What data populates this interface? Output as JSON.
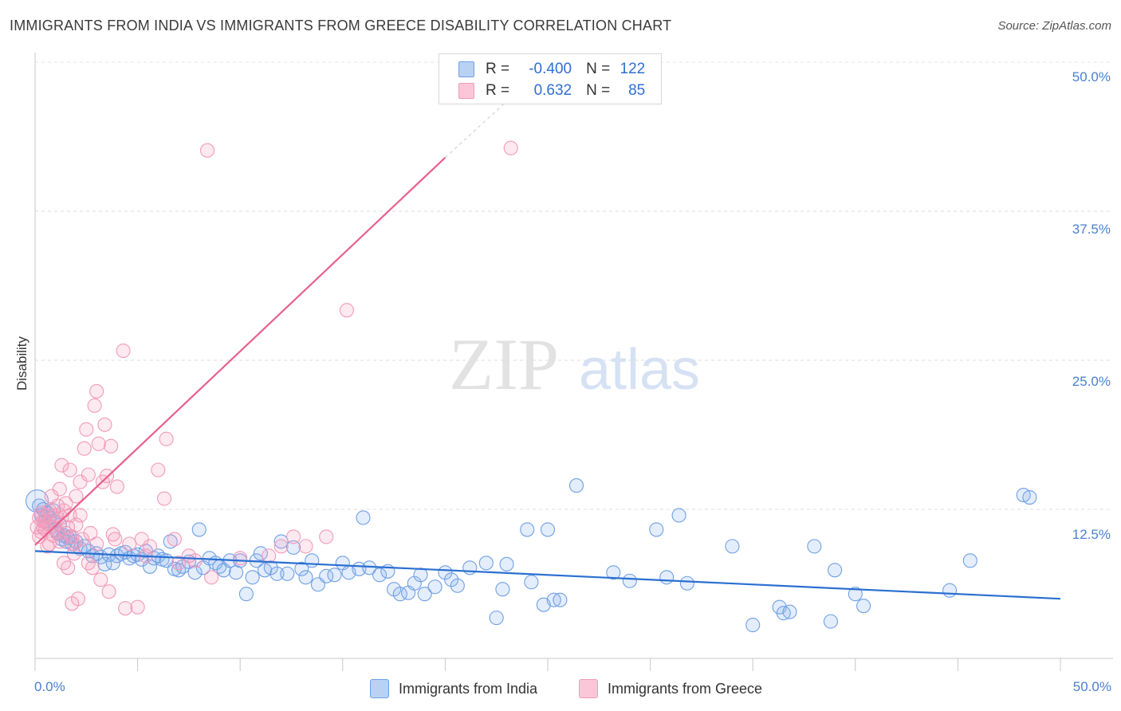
{
  "title": "IMMIGRANTS FROM INDIA VS IMMIGRANTS FROM GREECE DISABILITY CORRELATION CHART",
  "source": "Source: ZipAtlas.com",
  "watermark": {
    "zip": "ZIP",
    "atlas": "atlas"
  },
  "legend": {
    "india": {
      "r_label": "R =",
      "r_value": "-0.400",
      "n_label": "N =",
      "n_value": "122"
    },
    "greece": {
      "r_label": "R =",
      "r_value": "0.632",
      "n_label": "N =",
      "n_value": "85"
    }
  },
  "colors": {
    "india": "#6fa0e6",
    "india_line": "#2a6fd0",
    "greece": "#f29ab8",
    "greece_line": "#e8608e",
    "tick_text": "#4a7fcf"
  },
  "chart_data": {
    "type": "scatter",
    "title": "IMMIGRANTS FROM INDIA VS IMMIGRANTS FROM GREECE DISABILITY CORRELATION CHART",
    "xlabel": "",
    "ylabel": "Disability",
    "xlim": [
      0,
      50
    ],
    "ylim": [
      0,
      50
    ],
    "x_tick_labels": [
      "0.0%",
      "50.0%"
    ],
    "y_ticks": [
      12.5,
      25.0,
      37.5,
      50.0
    ],
    "y_tick_labels": [
      "12.5%",
      "25.0%",
      "37.5%",
      "50.0%"
    ],
    "grid": "horizontal dashed",
    "legend_position": "top-center",
    "series": [
      {
        "name": "Immigrants from India",
        "color": "#6fa0e6",
        "trend": {
          "x": [
            0,
            50
          ],
          "y": [
            9.0,
            5.0
          ]
        },
        "points": [
          [
            0.1,
            13.2
          ],
          [
            0.2,
            12.8
          ],
          [
            0.3,
            12.0
          ],
          [
            0.5,
            11.5
          ],
          [
            0.6,
            12.2
          ],
          [
            0.7,
            11.8
          ],
          [
            0.8,
            11.0
          ],
          [
            0.9,
            11.5
          ],
          [
            1.0,
            10.8
          ],
          [
            1.1,
            10.5
          ],
          [
            1.2,
            11.2
          ],
          [
            1.3,
            10.0
          ],
          [
            1.4,
            10.3
          ],
          [
            1.5,
            9.8
          ],
          [
            1.6,
            10.1
          ],
          [
            1.8,
            9.6
          ],
          [
            2.0,
            9.8
          ],
          [
            2.2,
            9.2
          ],
          [
            2.4,
            9.4
          ],
          [
            2.6,
            9.0
          ],
          [
            2.8,
            8.6
          ],
          [
            3.0,
            8.8
          ],
          [
            3.2,
            8.5
          ],
          [
            3.4,
            7.9
          ],
          [
            3.6,
            8.7
          ],
          [
            3.8,
            8.0
          ],
          [
            4.0,
            8.6
          ],
          [
            4.2,
            8.8
          ],
          [
            4.4,
            8.9
          ],
          [
            4.6,
            8.4
          ],
          [
            4.8,
            8.6
          ],
          [
            5.0,
            8.7
          ],
          [
            5.2,
            8.3
          ],
          [
            5.4,
            9.0
          ],
          [
            5.6,
            7.7
          ],
          [
            5.8,
            8.4
          ],
          [
            6.0,
            8.6
          ],
          [
            6.2,
            8.3
          ],
          [
            6.4,
            8.2
          ],
          [
            6.6,
            9.8
          ],
          [
            6.8,
            7.5
          ],
          [
            7.0,
            7.4
          ],
          [
            7.2,
            7.7
          ],
          [
            7.5,
            8.1
          ],
          [
            7.8,
            7.2
          ],
          [
            8.0,
            10.8
          ],
          [
            8.2,
            7.6
          ],
          [
            8.5,
            8.4
          ],
          [
            8.8,
            8.0
          ],
          [
            9.0,
            7.7
          ],
          [
            9.2,
            7.4
          ],
          [
            9.5,
            8.2
          ],
          [
            9.8,
            7.2
          ],
          [
            10.0,
            8.2
          ],
          [
            10.3,
            5.4
          ],
          [
            10.6,
            6.8
          ],
          [
            10.8,
            8.2
          ],
          [
            11.0,
            8.8
          ],
          [
            11.2,
            7.4
          ],
          [
            11.5,
            7.6
          ],
          [
            11.8,
            7.1
          ],
          [
            12.0,
            9.8
          ],
          [
            12.3,
            7.1
          ],
          [
            12.6,
            9.3
          ],
          [
            13.0,
            7.5
          ],
          [
            13.2,
            6.8
          ],
          [
            13.5,
            8.2
          ],
          [
            13.8,
            6.2
          ],
          [
            14.2,
            6.9
          ],
          [
            14.6,
            7.0
          ],
          [
            15.0,
            8.0
          ],
          [
            15.3,
            7.2
          ],
          [
            15.8,
            7.5
          ],
          [
            16.0,
            11.8
          ],
          [
            16.3,
            7.6
          ],
          [
            16.8,
            7.0
          ],
          [
            17.2,
            7.3
          ],
          [
            17.5,
            5.8
          ],
          [
            17.8,
            5.4
          ],
          [
            18.2,
            5.5
          ],
          [
            18.5,
            6.3
          ],
          [
            18.8,
            7.0
          ],
          [
            19.0,
            5.4
          ],
          [
            19.5,
            6.0
          ],
          [
            20.0,
            7.2
          ],
          [
            20.3,
            6.6
          ],
          [
            20.6,
            6.1
          ],
          [
            21.2,
            7.6
          ],
          [
            22.0,
            8.0
          ],
          [
            22.5,
            3.4
          ],
          [
            22.8,
            5.8
          ],
          [
            23.0,
            7.9
          ],
          [
            24.0,
            10.8
          ],
          [
            24.2,
            6.4
          ],
          [
            24.8,
            4.5
          ],
          [
            25.0,
            10.8
          ],
          [
            25.3,
            4.9
          ],
          [
            25.6,
            4.9
          ],
          [
            26.4,
            14.5
          ],
          [
            28.2,
            7.2
          ],
          [
            29.0,
            6.5
          ],
          [
            30.3,
            10.8
          ],
          [
            30.8,
            6.8
          ],
          [
            31.4,
            12.0
          ],
          [
            31.8,
            6.3
          ],
          [
            34.0,
            9.4
          ],
          [
            35.0,
            2.8
          ],
          [
            36.3,
            4.3
          ],
          [
            36.5,
            3.8
          ],
          [
            36.8,
            3.9
          ],
          [
            38.0,
            9.4
          ],
          [
            38.8,
            3.1
          ],
          [
            39.0,
            7.4
          ],
          [
            40.0,
            5.4
          ],
          [
            40.4,
            4.4
          ],
          [
            44.6,
            5.7
          ],
          [
            45.6,
            8.2
          ],
          [
            48.2,
            13.7
          ],
          [
            48.5,
            13.5
          ],
          [
            0.4,
            12.5
          ],
          [
            1.7,
            10.2
          ],
          [
            0.9,
            12.4
          ]
        ]
      },
      {
        "name": "Immigrants from Greece",
        "color": "#f29ab8",
        "trend": {
          "x": [
            0,
            20
          ],
          "y": [
            9.5,
            42.0
          ]
        },
        "trend_dashed": {
          "x": [
            20,
            23.5
          ],
          "y": [
            42.0,
            47.5
          ]
        },
        "points": [
          [
            0.1,
            11.0
          ],
          [
            0.2,
            11.8
          ],
          [
            0.3,
            12.2
          ],
          [
            0.3,
            10.6
          ],
          [
            0.4,
            11.5
          ],
          [
            0.5,
            12.0
          ],
          [
            0.5,
            10.8
          ],
          [
            0.6,
            11.3
          ],
          [
            0.7,
            12.4
          ],
          [
            0.7,
            9.6
          ],
          [
            0.8,
            13.6
          ],
          [
            0.8,
            11.0
          ],
          [
            0.9,
            10.3
          ],
          [
            1.0,
            12.0
          ],
          [
            1.0,
            11.4
          ],
          [
            1.1,
            10.6
          ],
          [
            1.2,
            9.8
          ],
          [
            1.2,
            14.2
          ],
          [
            1.3,
            11.8
          ],
          [
            1.3,
            16.2
          ],
          [
            1.4,
            12.4
          ],
          [
            1.4,
            8.0
          ],
          [
            1.5,
            13.0
          ],
          [
            1.5,
            10.5
          ],
          [
            1.6,
            11.0
          ],
          [
            1.6,
            7.6
          ],
          [
            1.7,
            12.0
          ],
          [
            1.7,
            15.8
          ],
          [
            1.8,
            10.2
          ],
          [
            1.8,
            4.6
          ],
          [
            1.9,
            9.6
          ],
          [
            2.0,
            13.6
          ],
          [
            2.0,
            11.2
          ],
          [
            2.1,
            5.0
          ],
          [
            2.2,
            12.0
          ],
          [
            2.2,
            14.8
          ],
          [
            2.3,
            10.0
          ],
          [
            2.4,
            17.6
          ],
          [
            2.5,
            19.2
          ],
          [
            2.6,
            8.0
          ],
          [
            2.7,
            10.5
          ],
          [
            2.8,
            7.6
          ],
          [
            2.9,
            21.2
          ],
          [
            3.0,
            22.4
          ],
          [
            3.0,
            9.6
          ],
          [
            3.1,
            18.0
          ],
          [
            3.2,
            6.6
          ],
          [
            3.3,
            14.8
          ],
          [
            3.4,
            19.6
          ],
          [
            3.5,
            15.3
          ],
          [
            3.6,
            5.6
          ],
          [
            3.8,
            10.4
          ],
          [
            3.9,
            10.0
          ],
          [
            4.0,
            14.4
          ],
          [
            4.3,
            25.8
          ],
          [
            4.4,
            4.2
          ],
          [
            4.6,
            9.6
          ],
          [
            5.0,
            4.3
          ],
          [
            5.2,
            10.0
          ],
          [
            5.4,
            8.6
          ],
          [
            5.6,
            9.4
          ],
          [
            6.0,
            15.8
          ],
          [
            6.3,
            13.4
          ],
          [
            6.4,
            18.4
          ],
          [
            6.8,
            10.0
          ],
          [
            7.0,
            8.0
          ],
          [
            7.5,
            8.6
          ],
          [
            7.8,
            8.2
          ],
          [
            8.6,
            6.8
          ],
          [
            10.0,
            8.4
          ],
          [
            11.4,
            8.6
          ],
          [
            12.0,
            9.4
          ],
          [
            12.6,
            10.2
          ],
          [
            13.2,
            9.4
          ],
          [
            14.2,
            10.2
          ],
          [
            8.4,
            42.6
          ],
          [
            15.2,
            29.2
          ],
          [
            23.2,
            42.8
          ],
          [
            0.2,
            10.2
          ],
          [
            0.6,
            9.4
          ],
          [
            1.1,
            12.8
          ],
          [
            1.9,
            8.8
          ],
          [
            2.6,
            15.4
          ],
          [
            3.7,
            17.8
          ],
          [
            0.4,
            11.0
          ]
        ]
      }
    ]
  }
}
